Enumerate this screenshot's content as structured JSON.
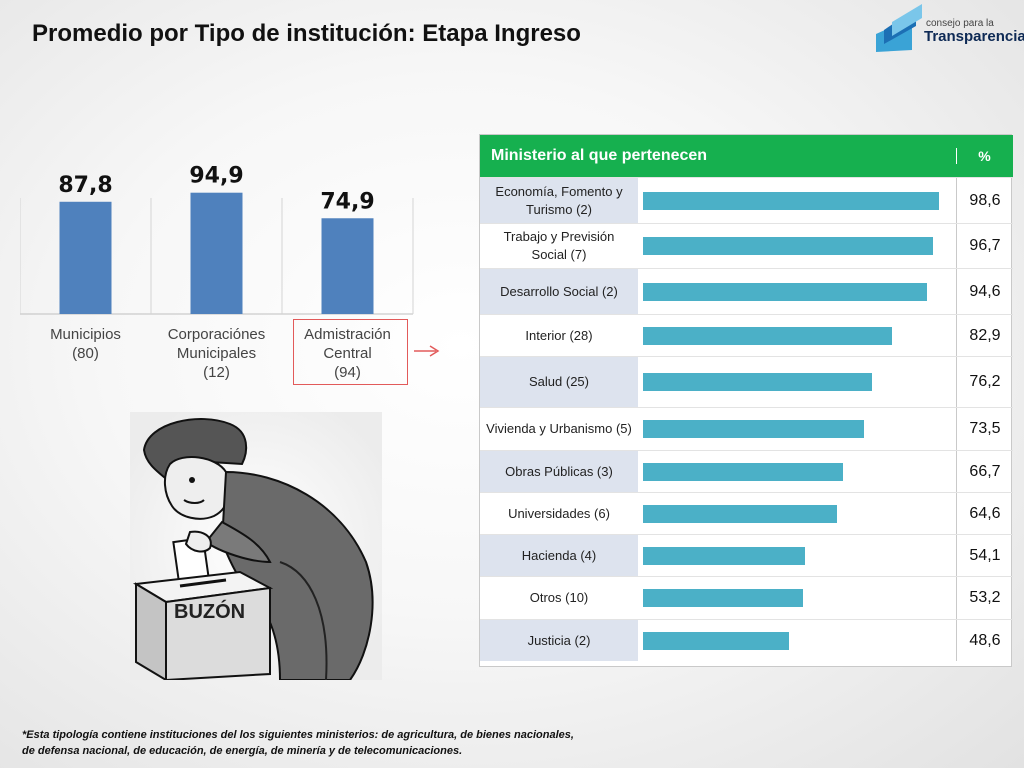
{
  "title": "Promedio por Tipo de institución: Etapa Ingreso",
  "logo": {
    "small": "consejo para la",
    "big": "Transparencia"
  },
  "colors": {
    "bar_left": "#4f81bd",
    "bar_right": "#4bb0c7",
    "header": "#16b04f",
    "highlight_box": "#e25a5a"
  },
  "chart_data": [
    {
      "type": "bar",
      "categories": [
        [
          "Municipios",
          "(80)"
        ],
        [
          "Corporaciónes",
          "Municipales",
          "(12)"
        ],
        [
          "Admistración",
          "Central",
          "(94)"
        ]
      ],
      "values": [
        87.8,
        94.9,
        74.9
      ],
      "data_labels": [
        "87,8",
        "94,9",
        "74,9"
      ],
      "ylim": [
        0,
        100
      ],
      "highlighted_category": 2
    },
    {
      "type": "table",
      "header": {
        "label": "Ministerio al que pertenecen",
        "value": "%"
      },
      "rows": [
        {
          "label": "Economía, Fomento y Turismo (2)",
          "value": 98.6,
          "display": "98,6"
        },
        {
          "label": "Trabajo y Previsión Social (7)",
          "value": 96.7,
          "display": "96,7"
        },
        {
          "label": "Desarrollo Social (2)",
          "value": 94.6,
          "display": "94,6"
        },
        {
          "label": "Interior (28)",
          "value": 82.9,
          "display": "82,9"
        },
        {
          "label": "Salud (25)",
          "value": 76.2,
          "display": "76,2"
        },
        {
          "label": "Vivienda y Urbanismo (5)",
          "value": 73.5,
          "display": "73,5"
        },
        {
          "label": "Obras Públicas (3)",
          "value": 66.7,
          "display": "66,7"
        },
        {
          "label": "Universidades (6)",
          "value": 64.6,
          "display": "64,6"
        },
        {
          "label": "Hacienda (4)",
          "value": 54.1,
          "display": "54,1"
        },
        {
          "label": "Otros (10)",
          "value": 53.2,
          "display": "53,2"
        },
        {
          "label": "Justicia (2)",
          "value": 48.6,
          "display": "48,6"
        }
      ],
      "xlim": [
        0,
        100
      ]
    }
  ],
  "illustration": {
    "box_label": "BUZÓN",
    "icon": "person-voting-ballot-box-icon"
  },
  "footnote": [
    "*Esta tipología contiene instituciones del los siguientes ministerios: de agricultura, de bienes nacionales,",
    "de defensa nacional, de educación, de energía, de minería y de telecomunicaciones."
  ]
}
